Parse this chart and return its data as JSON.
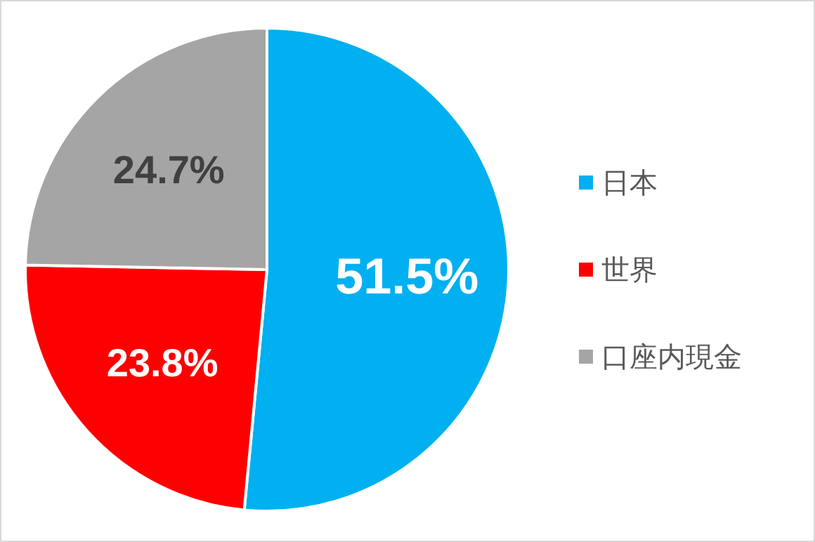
{
  "chart_data": {
    "type": "pie",
    "categories": [
      "日本",
      "世界",
      "口座内現金"
    ],
    "values": [
      51.5,
      23.8,
      24.7
    ],
    "colors": [
      "#00b0f0",
      "#ff0000",
      "#a5a5a5"
    ],
    "value_labels": [
      "51.5%",
      "23.8%",
      "24.7%"
    ],
    "legend": "right"
  }
}
